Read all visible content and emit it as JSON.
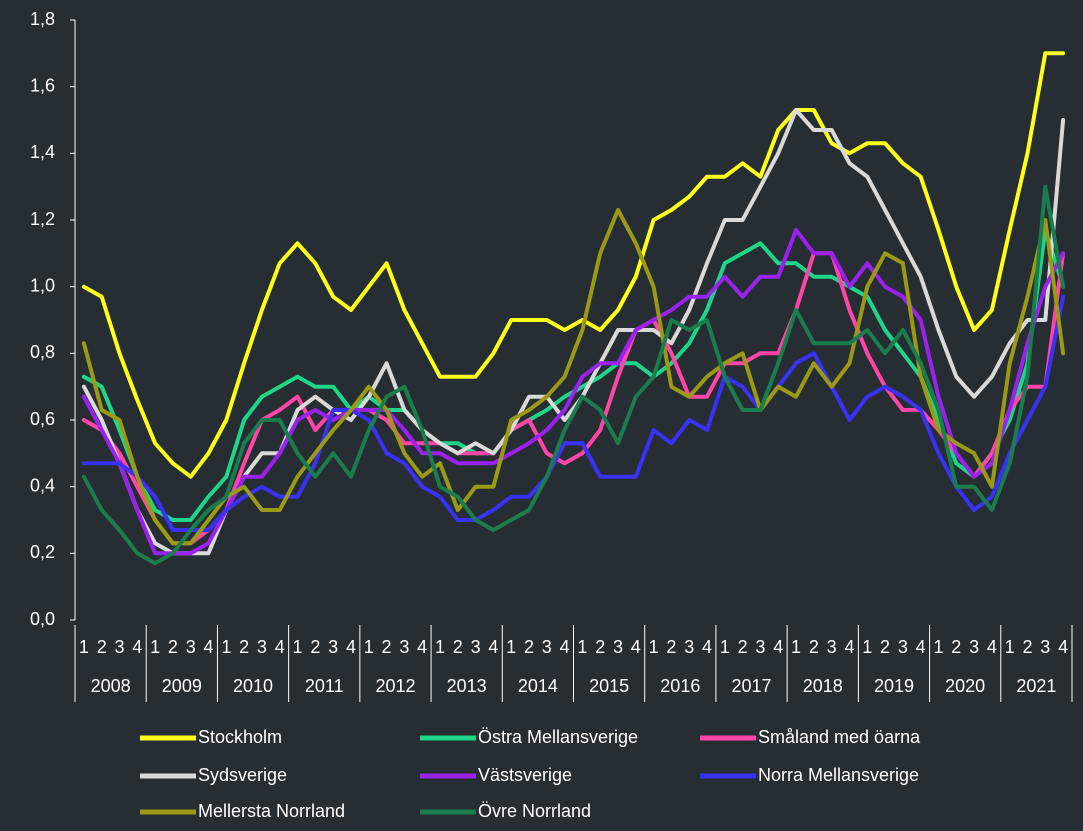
{
  "chart_data": {
    "type": "line",
    "categories": [
      "1",
      "2",
      "3",
      "4",
      "1",
      "2",
      "3",
      "4",
      "1",
      "2",
      "3",
      "4",
      "1",
      "2",
      "3",
      "4",
      "1",
      "2",
      "3",
      "4",
      "1",
      "2",
      "3",
      "4",
      "1",
      "2",
      "3",
      "4",
      "1",
      "2",
      "3",
      "4",
      "1",
      "2",
      "3",
      "4",
      "1",
      "2",
      "3",
      "4",
      "1",
      "2",
      "3",
      "4",
      "1",
      "2",
      "3",
      "4",
      "1",
      "2",
      "3",
      "4",
      "1",
      "2",
      "3",
      "4"
    ],
    "years": [
      "2008",
      "2009",
      "2010",
      "2011",
      "2012",
      "2013",
      "2014",
      "2015",
      "2016",
      "2017",
      "2018",
      "2019",
      "2020",
      "2021"
    ],
    "ylim": [
      0,
      1.8
    ],
    "yticks": [
      {
        "value": 0,
        "label": "0,0"
      },
      {
        "value": 0.2,
        "label": "0,2"
      },
      {
        "value": 0.4,
        "label": "0,4"
      },
      {
        "value": 0.6,
        "label": "0,6"
      },
      {
        "value": 0.8,
        "label": "0,8"
      },
      {
        "value": 1.0,
        "label": "1,0"
      },
      {
        "value": 1.2,
        "label": "1,2"
      },
      {
        "value": 1.4,
        "label": "1,4"
      },
      {
        "value": 1.6,
        "label": "1,6"
      },
      {
        "value": 1.8,
        "label": "1,8"
      }
    ],
    "series": [
      {
        "name": "Stockholm",
        "color": "#ffff1a",
        "values": [
          1.0,
          0.97,
          0.8,
          0.66,
          0.53,
          0.47,
          0.43,
          0.5,
          0.6,
          0.77,
          0.93,
          1.07,
          1.13,
          1.07,
          0.97,
          0.93,
          1.0,
          1.07,
          0.93,
          0.83,
          0.73,
          0.73,
          0.73,
          0.8,
          0.9,
          0.9,
          0.9,
          0.87,
          0.9,
          0.87,
          0.93,
          1.03,
          1.2,
          1.23,
          1.27,
          1.33,
          1.33,
          1.37,
          1.33,
          1.47,
          1.53,
          1.53,
          1.43,
          1.4,
          1.43,
          1.43,
          1.37,
          1.33,
          1.17,
          1.0,
          0.87,
          0.93,
          1.17,
          1.4,
          1.7,
          1.7
        ]
      },
      {
        "name": "Östra Mellansverige",
        "color": "#1ed68a",
        "values": [
          0.73,
          0.7,
          0.57,
          0.43,
          0.33,
          0.3,
          0.3,
          0.37,
          0.43,
          0.6,
          0.67,
          0.7,
          0.73,
          0.7,
          0.7,
          0.63,
          0.67,
          0.63,
          0.63,
          0.57,
          0.53,
          0.53,
          0.5,
          0.5,
          0.57,
          0.6,
          0.63,
          0.67,
          0.7,
          0.73,
          0.77,
          0.77,
          0.73,
          0.77,
          0.83,
          0.93,
          1.07,
          1.1,
          1.13,
          1.07,
          1.07,
          1.03,
          1.03,
          1.0,
          0.97,
          0.87,
          0.8,
          0.73,
          0.6,
          0.47,
          0.43,
          0.5,
          0.6,
          0.77,
          1.17,
          1.0
        ]
      },
      {
        "name": "Småland med öarna",
        "color": "#ff45a8",
        "values": [
          0.6,
          0.57,
          0.5,
          0.4,
          0.3,
          0.23,
          0.23,
          0.27,
          0.33,
          0.47,
          0.6,
          0.63,
          0.67,
          0.57,
          0.63,
          0.63,
          0.63,
          0.6,
          0.53,
          0.53,
          0.53,
          0.5,
          0.5,
          0.5,
          0.57,
          0.6,
          0.5,
          0.47,
          0.5,
          0.57,
          0.73,
          0.87,
          0.9,
          0.8,
          0.67,
          0.67,
          0.77,
          0.77,
          0.8,
          0.8,
          0.93,
          1.1,
          1.1,
          0.93,
          0.8,
          0.7,
          0.63,
          0.63,
          0.57,
          0.5,
          0.43,
          0.5,
          0.63,
          0.7,
          0.7,
          1.1
        ]
      },
      {
        "name": "Sydsverige",
        "color": "#d9d9d9",
        "values": [
          0.7,
          0.6,
          0.47,
          0.33,
          0.23,
          0.2,
          0.2,
          0.2,
          0.33,
          0.43,
          0.5,
          0.5,
          0.63,
          0.67,
          0.63,
          0.6,
          0.67,
          0.77,
          0.63,
          0.57,
          0.53,
          0.5,
          0.53,
          0.5,
          0.57,
          0.67,
          0.67,
          0.6,
          0.67,
          0.77,
          0.87,
          0.87,
          0.87,
          0.83,
          0.93,
          1.07,
          1.2,
          1.2,
          1.3,
          1.4,
          1.53,
          1.47,
          1.47,
          1.37,
          1.33,
          1.23,
          1.13,
          1.03,
          0.87,
          0.73,
          0.67,
          0.73,
          0.83,
          0.9,
          0.9,
          1.5
        ]
      },
      {
        "name": "Västsverige",
        "color": "#9b22ee",
        "values": [
          0.67,
          0.57,
          0.47,
          0.33,
          0.2,
          0.2,
          0.2,
          0.23,
          0.33,
          0.43,
          0.43,
          0.5,
          0.6,
          0.63,
          0.6,
          0.63,
          0.63,
          0.63,
          0.57,
          0.5,
          0.5,
          0.47,
          0.47,
          0.47,
          0.5,
          0.53,
          0.57,
          0.63,
          0.73,
          0.77,
          0.77,
          0.87,
          0.9,
          0.93,
          0.97,
          0.97,
          1.03,
          0.97,
          1.03,
          1.03,
          1.17,
          1.1,
          1.1,
          1.0,
          1.07,
          1.0,
          0.97,
          0.9,
          0.67,
          0.5,
          0.43,
          0.47,
          0.63,
          0.83,
          1.0,
          1.1
        ]
      },
      {
        "name": "Norra Mellansverige",
        "color": "#3b30f5",
        "values": [
          0.47,
          0.47,
          0.47,
          0.43,
          0.37,
          0.27,
          0.27,
          0.27,
          0.33,
          0.37,
          0.4,
          0.37,
          0.37,
          0.47,
          0.63,
          0.63,
          0.6,
          0.5,
          0.47,
          0.4,
          0.37,
          0.3,
          0.3,
          0.33,
          0.37,
          0.37,
          0.43,
          0.53,
          0.53,
          0.43,
          0.43,
          0.43,
          0.57,
          0.53,
          0.6,
          0.57,
          0.73,
          0.7,
          0.63,
          0.7,
          0.77,
          0.8,
          0.7,
          0.6,
          0.67,
          0.7,
          0.67,
          0.63,
          0.5,
          0.4,
          0.33,
          0.37,
          0.5,
          0.6,
          0.7,
          0.97
        ]
      },
      {
        "name": "Mellersta Norrland",
        "color": "#9a9a14",
        "values": [
          0.83,
          0.63,
          0.6,
          0.43,
          0.3,
          0.23,
          0.23,
          0.3,
          0.37,
          0.4,
          0.33,
          0.33,
          0.43,
          0.5,
          0.57,
          0.63,
          0.7,
          0.63,
          0.5,
          0.43,
          0.47,
          0.33,
          0.4,
          0.4,
          0.6,
          0.63,
          0.67,
          0.73,
          0.87,
          1.1,
          1.23,
          1.13,
          1.0,
          0.7,
          0.67,
          0.73,
          0.77,
          0.8,
          0.63,
          0.7,
          0.67,
          0.77,
          0.7,
          0.77,
          1.0,
          1.1,
          1.07,
          0.73,
          0.57,
          0.53,
          0.5,
          0.4,
          0.77,
          0.97,
          1.2,
          0.8
        ]
      },
      {
        "name": "Övre Norrland",
        "color": "#1a7d4c",
        "values": [
          0.43,
          0.33,
          0.27,
          0.2,
          0.17,
          0.2,
          0.27,
          0.33,
          0.37,
          0.53,
          0.6,
          0.6,
          0.5,
          0.43,
          0.5,
          0.43,
          0.57,
          0.67,
          0.7,
          0.57,
          0.4,
          0.37,
          0.3,
          0.27,
          0.3,
          0.33,
          0.43,
          0.57,
          0.67,
          0.63,
          0.53,
          0.67,
          0.73,
          0.9,
          0.87,
          0.9,
          0.73,
          0.63,
          0.63,
          0.77,
          0.93,
          0.83,
          0.83,
          0.83,
          0.87,
          0.8,
          0.87,
          0.77,
          0.63,
          0.4,
          0.4,
          0.33,
          0.47,
          0.73,
          1.3,
          1.0
        ]
      }
    ]
  }
}
